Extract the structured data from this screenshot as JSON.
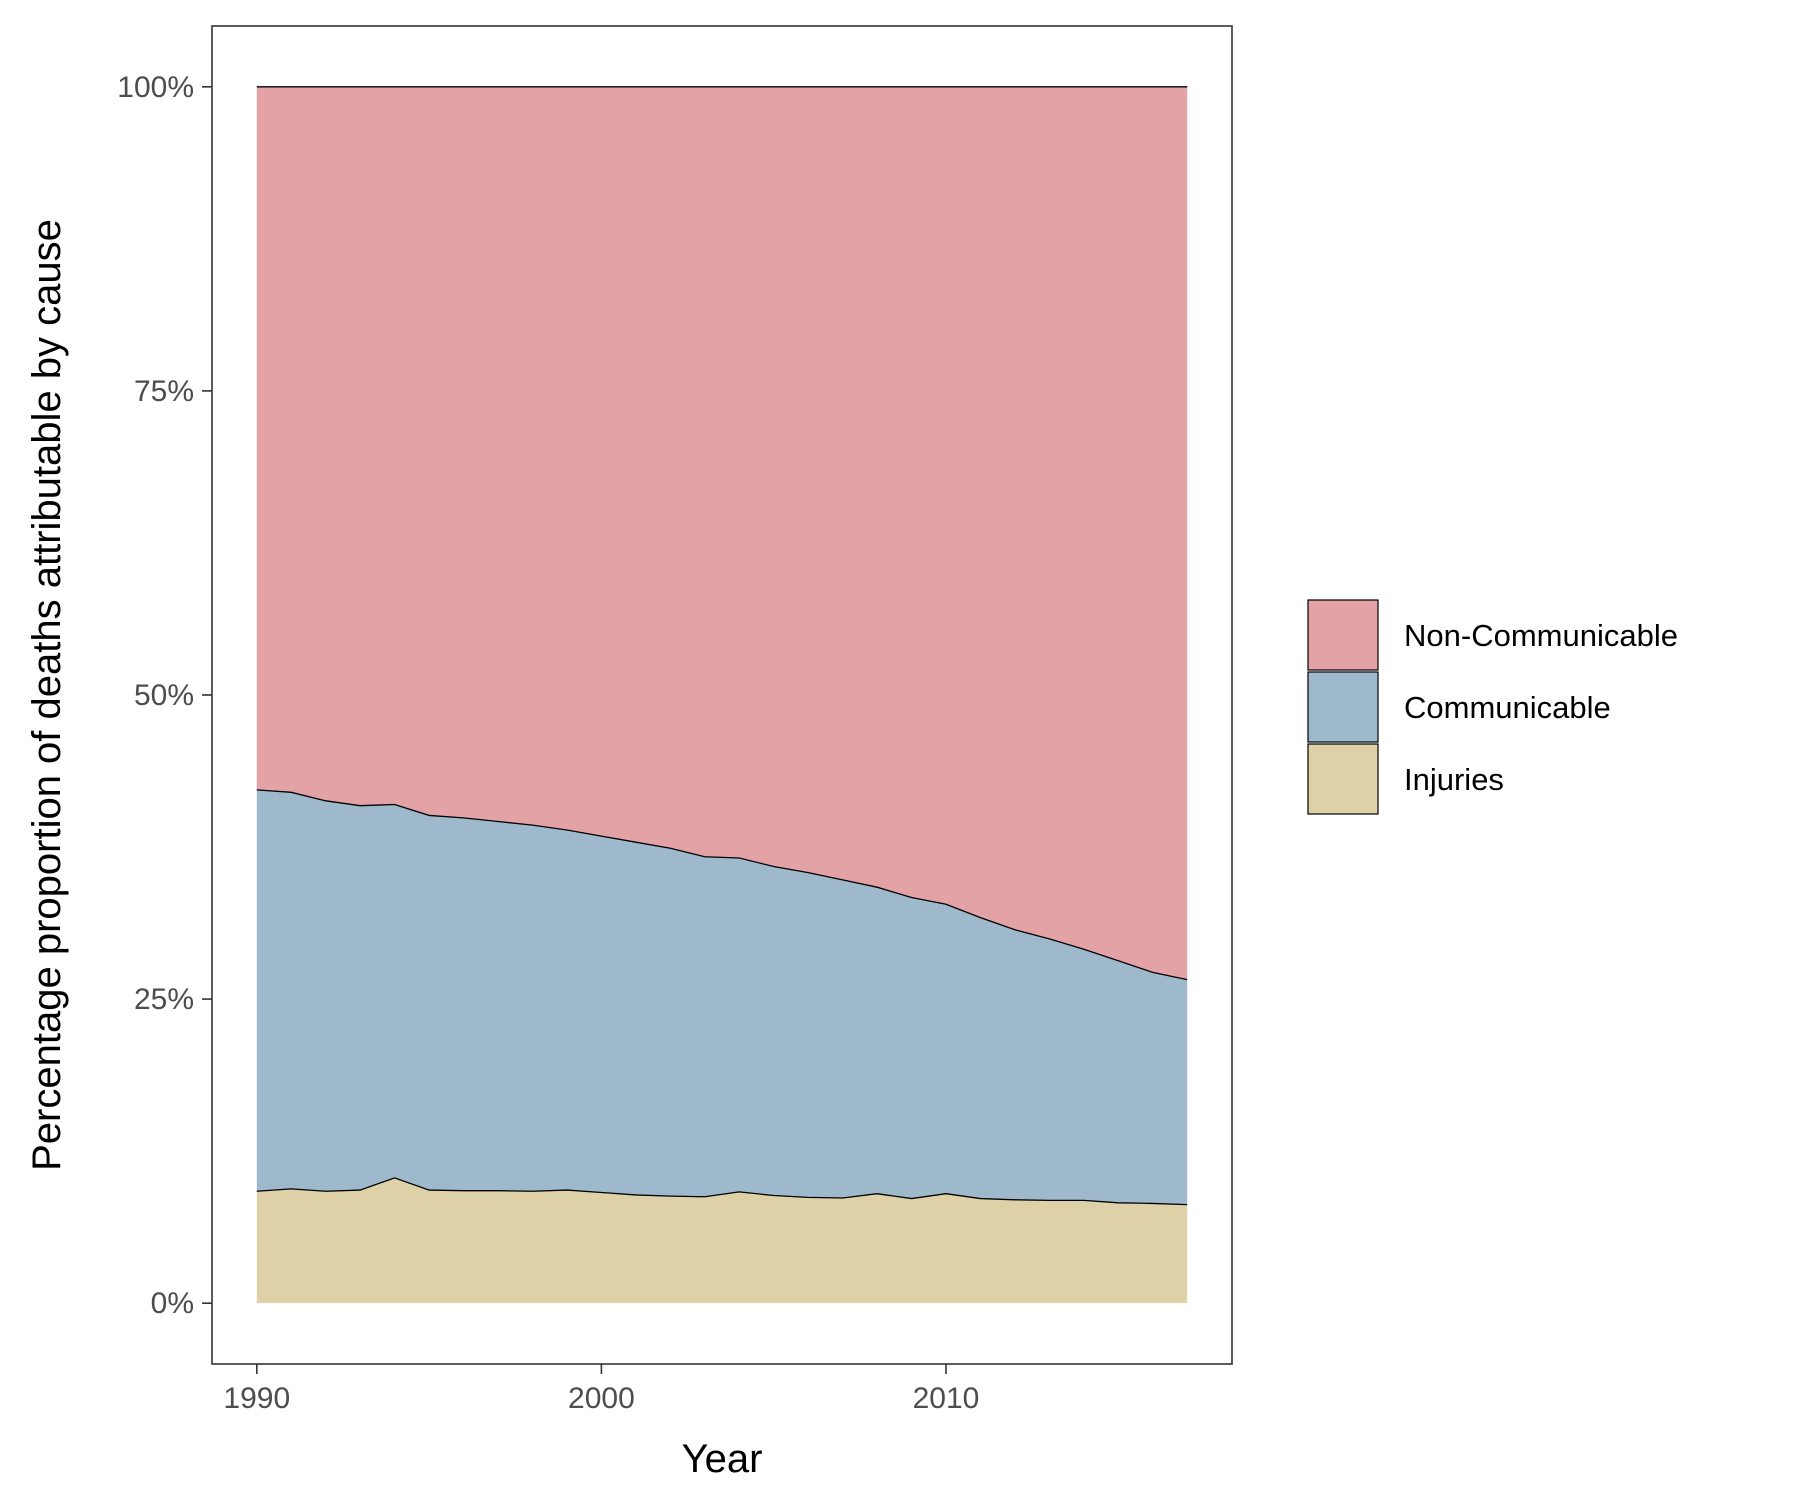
{
  "chart_data": {
    "type": "area",
    "stacked": true,
    "normalized_percent": true,
    "xlabel": "Year",
    "ylabel": "Percentage proportion of deaths attributable by cause",
    "xlim": [
      1988.7,
      2018.3
    ],
    "ylim": [
      -5,
      105
    ],
    "x_ticks": [
      1990,
      2000,
      2010
    ],
    "y_ticks": [
      {
        "value": 0,
        "label": "0%"
      },
      {
        "value": 25,
        "label": "25%"
      },
      {
        "value": 50,
        "label": "50%"
      },
      {
        "value": 75,
        "label": "75%"
      },
      {
        "value": 100,
        "label": "100%"
      }
    ],
    "grid": false,
    "legend_position": "right",
    "x": [
      1990,
      1991,
      1992,
      1993,
      1994,
      1995,
      1996,
      1997,
      1998,
      1999,
      2000,
      2001,
      2002,
      2003,
      2004,
      2005,
      2006,
      2007,
      2008,
      2009,
      2010,
      2011,
      2012,
      2013,
      2014,
      2015,
      2016,
      2017
    ],
    "series": [
      {
        "name": "Injuries",
        "color": "#ded1a7",
        "values": [
          9.2,
          9.4,
          9.2,
          9.3,
          10.3,
          9.3,
          9.25,
          9.25,
          9.2,
          9.3,
          9.1,
          8.9,
          8.8,
          8.75,
          9.15,
          8.85,
          8.7,
          8.65,
          9.0,
          8.6,
          9.0,
          8.6,
          8.5,
          8.45,
          8.45,
          8.25,
          8.2,
          8.1
        ]
      },
      {
        "name": "Communicable",
        "color": "#9eb9cc",
        "values": [
          33.0,
          32.6,
          32.1,
          31.6,
          30.7,
          30.8,
          30.65,
          30.35,
          30.1,
          29.6,
          29.3,
          29.0,
          28.6,
          27.95,
          27.45,
          27.05,
          26.7,
          26.15,
          25.2,
          24.75,
          23.8,
          23.1,
          22.2,
          21.5,
          20.65,
          19.9,
          19.0,
          18.5
        ]
      },
      {
        "name": "Non-Communicable",
        "color": "#e2a2a6",
        "values": [
          57.8,
          58.0,
          58.7,
          59.1,
          59.0,
          59.9,
          60.1,
          60.4,
          60.7,
          61.1,
          61.6,
          62.1,
          62.6,
          63.3,
          63.4,
          64.1,
          64.6,
          65.2,
          65.8,
          66.65,
          67.2,
          68.3,
          69.3,
          70.05,
          70.9,
          71.85,
          72.8,
          73.4
        ]
      }
    ]
  }
}
